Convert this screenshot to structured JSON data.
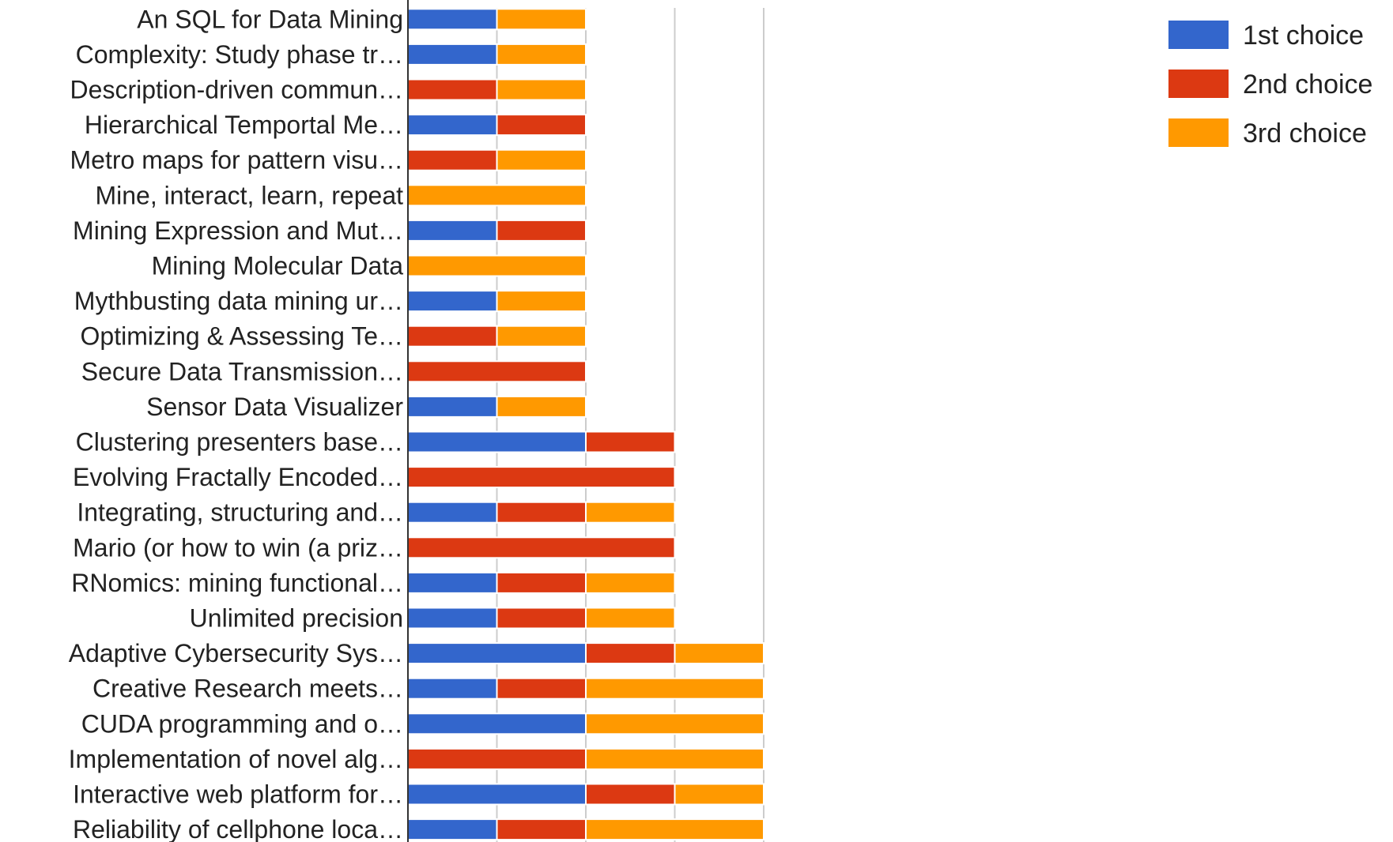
{
  "chart_data": {
    "type": "bar",
    "orientation": "horizontal",
    "stacked": true,
    "grid": true,
    "legend_position": "right",
    "xlim": [
      0,
      4
    ],
    "categories": [
      "An SQL for Data Mining",
      "Complexity: Study phase tr…",
      "Description-driven commun…",
      "Hierarchical Temportal Me…",
      "Metro maps for pattern visu…",
      "Mine, interact, learn, repeat",
      "Mining Expression and Mut…",
      "Mining Molecular Data",
      "Mythbusting data mining ur…",
      "Optimizing & Assessing Te…",
      "Secure Data Transmission…",
      "Sensor Data Visualizer",
      "Clustering presenters base…",
      "Evolving Fractally Encoded…",
      "Integrating, structuring and…",
      "Mario (or how to win (a priz…",
      "RNomics: mining functional…",
      "Unlimited precision",
      "Adaptive Cybersecurity Sys…",
      "Creative Research meets…",
      "CUDA programming and o…",
      "Implementation of novel alg…",
      "Interactive web platform for…",
      "Reliability of cellphone loca…"
    ],
    "series": [
      {
        "name": "1st choice",
        "color": "#3366cc",
        "values": [
          1,
          1,
          0,
          1,
          0,
          0,
          1,
          0,
          1,
          0,
          0,
          1,
          2,
          0,
          1,
          0,
          1,
          1,
          2,
          1,
          2,
          0,
          2,
          1
        ]
      },
      {
        "name": "2nd choice",
        "color": "#dc3912",
        "values": [
          0,
          0,
          1,
          1,
          1,
          0,
          1,
          0,
          0,
          1,
          2,
          0,
          1,
          3,
          1,
          3,
          1,
          1,
          1,
          1,
          0,
          2,
          1,
          1
        ]
      },
      {
        "name": "3rd choice",
        "color": "#ff9900",
        "values": [
          1,
          1,
          1,
          0,
          1,
          2,
          0,
          2,
          1,
          1,
          0,
          1,
          0,
          0,
          1,
          0,
          1,
          1,
          1,
          2,
          2,
          2,
          1,
          2
        ]
      }
    ]
  }
}
